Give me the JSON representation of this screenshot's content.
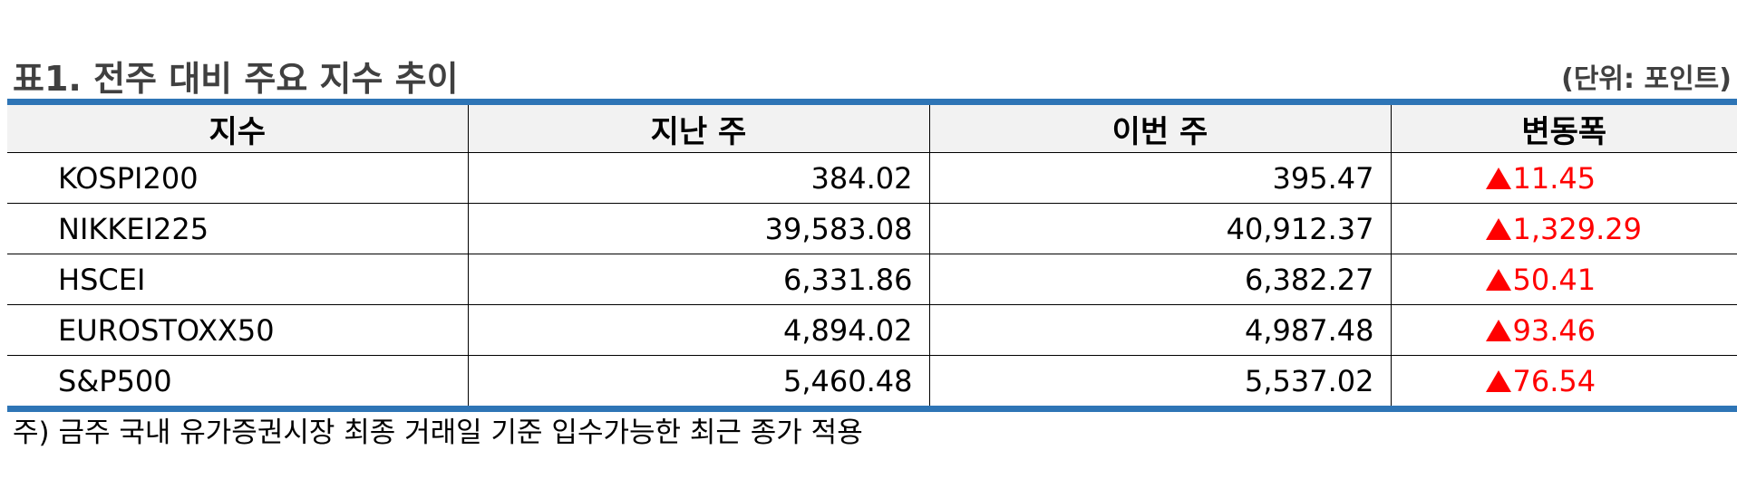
{
  "title": "표1. 전주 대비 주요 지수 추이",
  "unit": "(단위: 포인트)",
  "table": {
    "headers": [
      "지수",
      "지난 주",
      "이번 주",
      "변동폭"
    ],
    "rows": [
      {
        "index": "KOSPI200",
        "last_week": "384.02",
        "this_week": "395.47",
        "change": "11.45",
        "direction": "up"
      },
      {
        "index": "NIKKEI225",
        "last_week": "39,583.08",
        "this_week": "40,912.37",
        "change": "1,329.29",
        "direction": "up"
      },
      {
        "index": "HSCEI",
        "last_week": "6,331.86",
        "this_week": "6,382.27",
        "change": "50.41",
        "direction": "up"
      },
      {
        "index": "EUROSTOXX50",
        "last_week": "4,894.02",
        "this_week": "4,987.48",
        "change": "93.46",
        "direction": "up"
      },
      {
        "index": "S&P500",
        "last_week": "5,460.48",
        "this_week": "5,537.02",
        "change": "76.54",
        "direction": "up"
      }
    ]
  },
  "footnote": "주) 금주 국내 유가증권시장 최종 거래일 기준 입수가능한 최근 종가 적용",
  "colors": {
    "accent_border": "#2e75b6",
    "header_bg": "#f2f2f2",
    "title_text": "#404040",
    "change_up": "#ff0000"
  },
  "icons": {
    "change_up": "triangle-up-icon"
  }
}
